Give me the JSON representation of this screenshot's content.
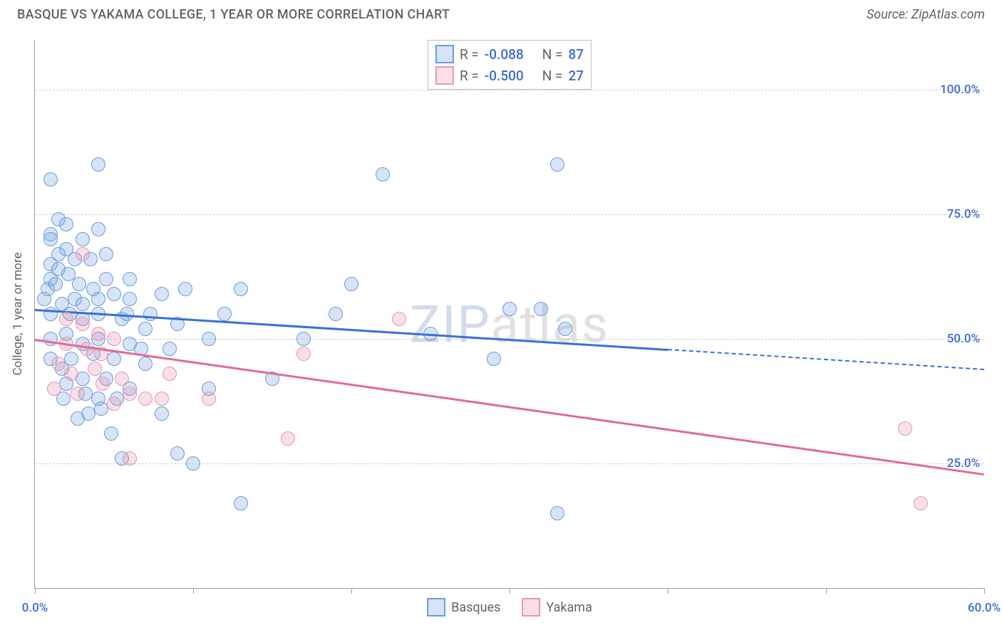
{
  "header": {
    "title": "BASQUE VS YAKAMA COLLEGE, 1 YEAR OR MORE CORRELATION CHART",
    "source": "Source: ZipAtlas.com"
  },
  "axes": {
    "y_label": "College, 1 year or more",
    "x_min": 0,
    "x_max": 60,
    "y_min": 0,
    "y_max": 110,
    "x_ticks": [
      0,
      10,
      20,
      30,
      40,
      50,
      60
    ],
    "x_tick_labels": {
      "0": "0.0%",
      "60": "60.0%"
    },
    "x_label_color": "#3f6ad8",
    "y_gridlines": [
      25,
      50,
      75,
      100
    ],
    "y_tick_labels": {
      "25": "25.0%",
      "50": "50.0%",
      "75": "75.0%",
      "100": "100.0%"
    },
    "y_label_color": "#3f6ad8",
    "grid_color": "#cfcfcf",
    "axis_color": "#9e9e9e"
  },
  "series": {
    "basques": {
      "label": "Basques",
      "fill": "rgba(120,165,225,0.30)",
      "stroke": "#6b9be0",
      "line_color": "#3a6fd8",
      "trend_solid": {
        "x1": 0,
        "y1": 56,
        "x2": 40,
        "y2": 48
      },
      "trend_dash": {
        "x1": 40,
        "y1": 48,
        "x2": 60,
        "y2": 44
      },
      "points": [
        [
          1,
          82
        ],
        [
          4,
          85
        ],
        [
          1.5,
          74
        ],
        [
          2,
          73
        ],
        [
          4,
          72
        ],
        [
          1,
          71
        ],
        [
          1,
          70
        ],
        [
          3,
          70
        ],
        [
          2,
          68
        ],
        [
          1.5,
          67
        ],
        [
          1,
          65
        ],
        [
          1.5,
          64
        ],
        [
          2.5,
          66
        ],
        [
          3.5,
          66
        ],
        [
          4.5,
          67
        ],
        [
          1,
          62
        ],
        [
          0.8,
          60
        ],
        [
          1.3,
          61
        ],
        [
          2.1,
          63
        ],
        [
          2.8,
          61
        ],
        [
          3.7,
          60
        ],
        [
          4.5,
          62
        ],
        [
          0.6,
          58
        ],
        [
          1.7,
          57
        ],
        [
          2.5,
          58
        ],
        [
          3,
          57
        ],
        [
          4,
          58
        ],
        [
          5,
          59
        ],
        [
          6,
          58
        ],
        [
          8,
          59
        ],
        [
          13,
          60
        ],
        [
          1,
          55
        ],
        [
          2.2,
          55
        ],
        [
          3,
          54
        ],
        [
          4,
          55
        ],
        [
          5.5,
          54
        ],
        [
          7,
          52
        ],
        [
          9,
          53
        ],
        [
          8.5,
          48
        ],
        [
          6,
          49
        ],
        [
          4,
          50
        ],
        [
          3,
          49
        ],
        [
          2,
          51
        ],
        [
          1,
          50
        ],
        [
          5,
          46
        ],
        [
          3.7,
          47
        ],
        [
          7,
          45
        ],
        [
          6,
          40
        ],
        [
          11,
          50
        ],
        [
          20,
          61
        ],
        [
          22,
          83
        ],
        [
          30,
          56
        ],
        [
          29,
          46
        ],
        [
          8,
          35
        ],
        [
          9,
          27
        ],
        [
          10,
          25
        ],
        [
          13,
          17
        ],
        [
          5.5,
          26
        ],
        [
          2,
          41
        ],
        [
          3,
          42
        ],
        [
          4.5,
          42
        ],
        [
          1.7,
          44
        ],
        [
          2.3,
          46
        ],
        [
          1,
          46
        ],
        [
          4,
          38
        ],
        [
          5.2,
          38
        ],
        [
          3.4,
          35
        ],
        [
          4.2,
          36
        ],
        [
          19,
          55
        ],
        [
          33,
          85
        ],
        [
          33,
          15
        ],
        [
          33.5,
          52
        ],
        [
          25,
          51
        ],
        [
          32,
          56
        ],
        [
          5.8,
          55
        ],
        [
          7.3,
          55
        ],
        [
          6,
          62
        ],
        [
          6.7,
          48
        ],
        [
          3.2,
          39
        ],
        [
          4.8,
          31
        ],
        [
          2.7,
          34
        ],
        [
          1.8,
          38
        ],
        [
          12,
          55
        ],
        [
          11,
          40
        ],
        [
          17,
          50
        ],
        [
          15,
          42
        ],
        [
          9.5,
          60
        ]
      ]
    },
    "yakama": {
      "label": "Yakama",
      "fill": "rgba(235,140,170,0.28)",
      "stroke": "#e497b2",
      "line_color": "#e46a93",
      "trend_solid": {
        "x1": 0,
        "y1": 50,
        "x2": 60,
        "y2": 23
      },
      "points": [
        [
          3,
          67
        ],
        [
          2,
          54
        ],
        [
          3,
          53
        ],
        [
          4,
          51
        ],
        [
          5,
          50
        ],
        [
          2,
          49
        ],
        [
          3.3,
          48
        ],
        [
          4.2,
          47
        ],
        [
          1.5,
          45
        ],
        [
          2.3,
          43
        ],
        [
          3.8,
          44
        ],
        [
          1.2,
          40
        ],
        [
          2.7,
          39
        ],
        [
          4.3,
          41
        ],
        [
          5.5,
          42
        ],
        [
          5,
          37
        ],
        [
          6,
          39
        ],
        [
          7,
          38
        ],
        [
          8,
          38
        ],
        [
          8.5,
          43
        ],
        [
          11,
          38
        ],
        [
          17,
          47
        ],
        [
          16,
          30
        ],
        [
          23,
          54
        ],
        [
          6,
          26
        ],
        [
          55,
          32
        ],
        [
          56,
          17
        ]
      ]
    }
  },
  "stats": [
    {
      "swatch_fill": "rgba(120,165,225,0.30)",
      "swatch_stroke": "#6b9be0",
      "r": "-0.088",
      "n": "87"
    },
    {
      "swatch_fill": "rgba(235,140,170,0.28)",
      "swatch_stroke": "#e497b2",
      "r": "-0.500",
      "n": "27"
    }
  ],
  "stats_labels": {
    "r_prefix": "R =",
    "n_prefix": "N =",
    "value_color": "#3f6ad8"
  },
  "watermark": {
    "part1": "ZIP",
    "part2": "atlas"
  }
}
